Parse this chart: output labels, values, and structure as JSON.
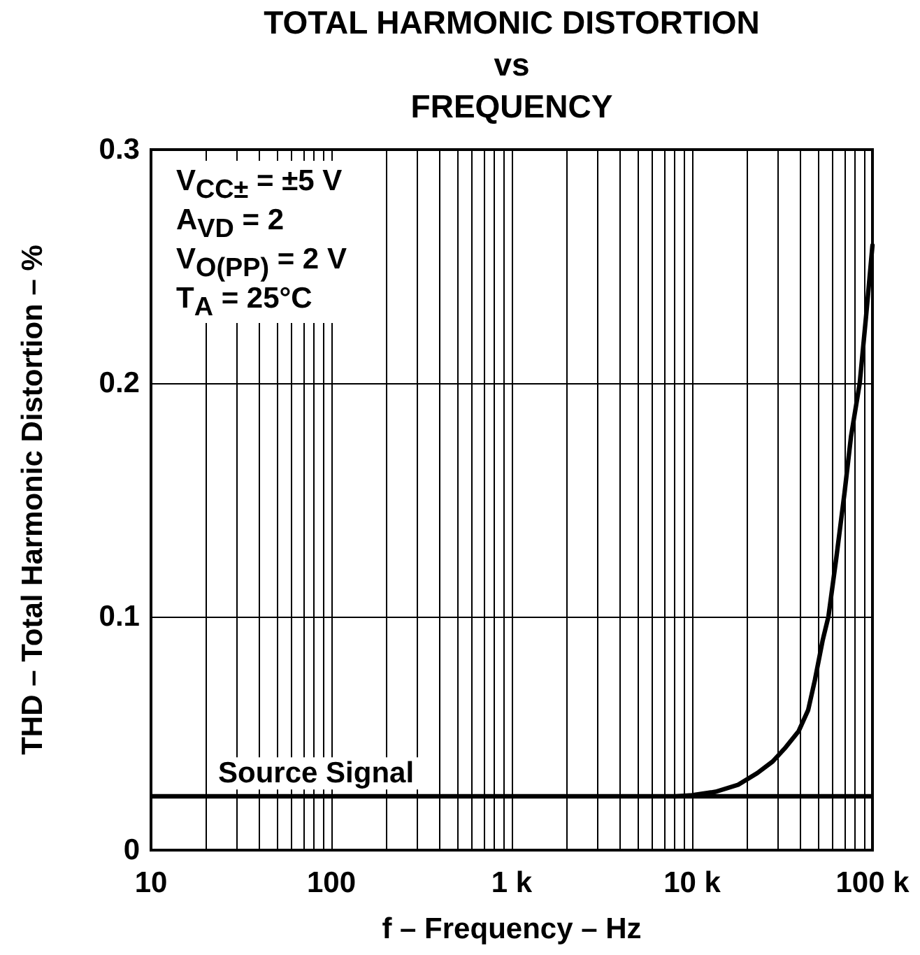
{
  "chart_data": {
    "type": "line",
    "title": "TOTAL HARMONIC DISTORTION\nvs\nFREQUENCY",
    "xlabel": "f – Frequency – Hz",
    "ylabel": "THD – Total Harmonic Distortion – %",
    "x": [
      8000,
      10000,
      13500,
      18000,
      23000,
      28000,
      33000,
      39000,
      44000,
      48000,
      53000,
      57000,
      63000,
      70000,
      76000,
      85000,
      92000,
      100000
    ],
    "series": [
      {
        "color": "#000000",
        "values": [
          0.023,
          0.0235,
          0.025,
          0.028,
          0.033,
          0.038,
          0.044,
          0.051,
          0.06,
          0.073,
          0.09,
          0.1,
          0.125,
          0.153,
          0.177,
          0.2,
          0.228,
          0.259
        ]
      }
    ],
    "log": "x",
    "xlim": [
      10,
      100000
    ],
    "xticks": [
      10,
      {
        "value": 20,
        "label": null
      },
      {
        "value": 30,
        "label": null
      },
      {
        "value": 40,
        "label": null
      },
      {
        "value": 50,
        "label": null
      },
      {
        "value": 60,
        "label": null
      },
      {
        "value": 70,
        "label": null
      },
      {
        "value": 80,
        "label": null
      },
      {
        "value": 90,
        "label": null
      },
      100,
      {
        "value": 200,
        "label": null
      },
      {
        "value": 300,
        "label": null
      },
      {
        "value": 400,
        "label": null
      },
      {
        "value": 500,
        "label": null
      },
      {
        "value": 600,
        "label": null
      },
      {
        "value": 700,
        "label": null
      },
      {
        "value": 800,
        "label": null
      },
      {
        "value": 900,
        "label": null
      },
      {
        "value": 1000,
        "label": "1 k"
      },
      {
        "value": 2000,
        "label": null
      },
      {
        "value": 3000,
        "label": null
      },
      {
        "value": 4000,
        "label": null
      },
      {
        "value": 5000,
        "label": null
      },
      {
        "value": 6000,
        "label": null
      },
      {
        "value": 7000,
        "label": null
      },
      {
        "value": 8000,
        "label": null
      },
      {
        "value": 9000,
        "label": null
      },
      {
        "value": 10000,
        "label": "10 k"
      },
      {
        "value": 20000,
        "label": null
      },
      {
        "value": 30000,
        "label": null
      },
      {
        "value": 40000,
        "label": null
      },
      {
        "value": 50000,
        "label": null
      },
      {
        "value": 60000,
        "label": null
      },
      {
        "value": 70000,
        "label": null
      },
      {
        "value": 80000,
        "label": null
      },
      {
        "value": 90000,
        "label": null
      },
      {
        "value": 100000,
        "label": "100 k"
      }
    ],
    "ylim": [
      0,
      0.3
    ],
    "yticks": [
      0,
      0.1,
      0.2,
      0.3
    ],
    "grid": true,
    "marker": "none",
    "line_style": "solid",
    "ref_lines": [
      {
        "axis": "y",
        "value": 0.023,
        "label": "Source Signal",
        "color": "#000000"
      }
    ],
    "annotations": [
      "V$_{CC±}$ = ±5 V",
      "A$_{VD}$ = 2",
      "V$_{O(PP)}$ = 2 V",
      "T$_{A}$ = 25°C"
    ]
  }
}
